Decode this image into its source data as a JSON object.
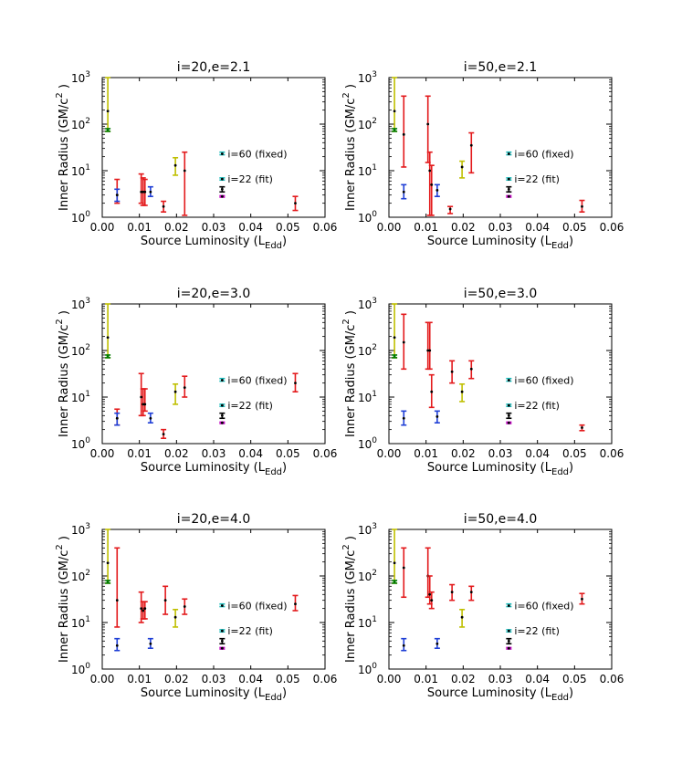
{
  "chart_data": {
    "type": "scatter",
    "colors": {
      "yellow": "#bfbf00",
      "red": "#e31a1c",
      "blue": "#1f3fd6",
      "cyan": "#17b9b9",
      "green": "#007a00",
      "black": "#000000",
      "magenta": "#c000c0"
    },
    "legend": {
      "fixed_label": "i=60 (fixed)",
      "fit_label": "i=22 (fit)"
    },
    "panels": [
      {
        "title": "i=20,e=2.1",
        "xlabel": "Source Luminosity (L",
        "xlabel_sub": "Edd",
        "xlabel_close": ")",
        "ylabel": "Inner Radius (GM/c",
        "ylabel_sup": "2",
        "ylabel_close": " )",
        "xlim": [
          0,
          0.06
        ],
        "ylim": [
          1,
          1000
        ],
        "xticks": [
          "0.00",
          "0.01",
          "0.02",
          "0.03",
          "0.04",
          "0.05",
          "0.06"
        ],
        "yticks": [
          "10",
          "10",
          "10",
          "10"
        ],
        "ytick_exp": [
          "0",
          "1",
          "2",
          "3"
        ],
        "points": [
          {
            "x": 0.0015,
            "y": 190,
            "lo": 70,
            "hi": 1000,
            "color": "yellow"
          },
          {
            "x": 0.0015,
            "y": 75,
            "lo": 70,
            "hi": 80,
            "color": "green"
          },
          {
            "x": 0.004,
            "y": 3.0,
            "lo": 2.0,
            "hi": 6.5,
            "color": "red"
          },
          {
            "x": 0.004,
            "y": 3.0,
            "lo": 2.2,
            "hi": 4.0,
            "color": "blue"
          },
          {
            "x": 0.0105,
            "y": 3.5,
            "lo": 2.0,
            "hi": 8.5,
            "color": "red"
          },
          {
            "x": 0.011,
            "y": 3.5,
            "lo": 1.8,
            "hi": 7.0,
            "color": "red"
          },
          {
            "x": 0.0115,
            "y": 3.5,
            "lo": 1.8,
            "hi": 6.5,
            "color": "red"
          },
          {
            "x": 0.013,
            "y": 3.5,
            "lo": 2.8,
            "hi": 4.5,
            "color": "blue"
          },
          {
            "x": 0.0165,
            "y": 1.7,
            "lo": 1.3,
            "hi": 2.2,
            "color": "red"
          },
          {
            "x": 0.0197,
            "y": 13,
            "lo": 8,
            "hi": 19,
            "color": "yellow"
          },
          {
            "x": 0.0222,
            "y": 10,
            "lo": 1.1,
            "hi": 25,
            "color": "red"
          },
          {
            "x": 0.0323,
            "y": 23,
            "lo": 22,
            "hi": 25,
            "color": "cyan"
          },
          {
            "x": 0.0323,
            "y": 6.6,
            "lo": 6.3,
            "hi": 7,
            "color": "cyan"
          },
          {
            "x": 0.0323,
            "y": 4.0,
            "lo": 3.5,
            "hi": 4.5,
            "color": "black"
          },
          {
            "x": 0.0323,
            "y": 2.8,
            "lo": 2.7,
            "hi": 2.9,
            "color": "magenta"
          },
          {
            "x": 0.052,
            "y": 2.0,
            "lo": 1.4,
            "hi": 2.8,
            "color": "red"
          }
        ]
      },
      {
        "title": "i=50,e=2.1",
        "xlabel": "Source Luminosity (L",
        "xlabel_sub": "Edd",
        "xlabel_close": ")",
        "ylabel": "Inner Radius (GM/c",
        "ylabel_sup": "2",
        "ylabel_close": " )",
        "xlim": [
          0,
          0.06
        ],
        "ylim": [
          1,
          1000
        ],
        "xticks": [
          "0.00",
          "0.01",
          "0.02",
          "0.03",
          "0.04",
          "0.05",
          "0.06"
        ],
        "yticks": [
          "10",
          "10",
          "10",
          "10"
        ],
        "ytick_exp": [
          "0",
          "1",
          "2",
          "3"
        ],
        "points": [
          {
            "x": 0.0015,
            "y": 190,
            "lo": 70,
            "hi": 1000,
            "color": "yellow"
          },
          {
            "x": 0.0015,
            "y": 75,
            "lo": 70,
            "hi": 80,
            "color": "green"
          },
          {
            "x": 0.004,
            "y": 60,
            "lo": 12,
            "hi": 400,
            "color": "red"
          },
          {
            "x": 0.004,
            "y": 3.5,
            "lo": 2.5,
            "hi": 5,
            "color": "blue"
          },
          {
            "x": 0.0105,
            "y": 100,
            "lo": 15,
            "hi": 400,
            "color": "red"
          },
          {
            "x": 0.011,
            "y": 10,
            "lo": 1.1,
            "hi": 25,
            "color": "red"
          },
          {
            "x": 0.0115,
            "y": 5,
            "lo": 1.1,
            "hi": 13,
            "color": "red"
          },
          {
            "x": 0.013,
            "y": 3.8,
            "lo": 2.8,
            "hi": 5,
            "color": "blue"
          },
          {
            "x": 0.0165,
            "y": 1.5,
            "lo": 1.2,
            "hi": 1.7,
            "color": "red"
          },
          {
            "x": 0.0197,
            "y": 12,
            "lo": 7,
            "hi": 16,
            "color": "yellow"
          },
          {
            "x": 0.0222,
            "y": 35,
            "lo": 9,
            "hi": 65,
            "color": "red"
          },
          {
            "x": 0.0323,
            "y": 23,
            "lo": 22,
            "hi": 25,
            "color": "cyan"
          },
          {
            "x": 0.0323,
            "y": 6.6,
            "lo": 6.3,
            "hi": 7,
            "color": "cyan"
          },
          {
            "x": 0.0323,
            "y": 4.0,
            "lo": 3.5,
            "hi": 4.5,
            "color": "black"
          },
          {
            "x": 0.0323,
            "y": 2.8,
            "lo": 2.7,
            "hi": 2.9,
            "color": "magenta"
          },
          {
            "x": 0.052,
            "y": 1.7,
            "lo": 1.3,
            "hi": 2.3,
            "color": "red"
          }
        ]
      },
      {
        "title": "i=20,e=3.0",
        "xlabel": "Source Luminosity (L",
        "xlabel_sub": "Edd",
        "xlabel_close": ")",
        "ylabel": "Inner Radius (GM/c",
        "ylabel_sup": "2",
        "ylabel_close": " )",
        "xlim": [
          0,
          0.06
        ],
        "ylim": [
          1,
          1000
        ],
        "xticks": [
          "0.00",
          "0.01",
          "0.02",
          "0.03",
          "0.04",
          "0.05",
          "0.06"
        ],
        "yticks": [
          "10",
          "10",
          "10",
          "10"
        ],
        "ytick_exp": [
          "0",
          "1",
          "2",
          "3"
        ],
        "points": [
          {
            "x": 0.0015,
            "y": 190,
            "lo": 70,
            "hi": 1000,
            "color": "yellow"
          },
          {
            "x": 0.0015,
            "y": 75,
            "lo": 70,
            "hi": 80,
            "color": "green"
          },
          {
            "x": 0.004,
            "y": 3.5,
            "lo": 2.5,
            "hi": 5.5,
            "color": "red"
          },
          {
            "x": 0.004,
            "y": 3.5,
            "lo": 2.5,
            "hi": 4.5,
            "color": "blue"
          },
          {
            "x": 0.0105,
            "y": 10,
            "lo": 4,
            "hi": 32,
            "color": "red"
          },
          {
            "x": 0.011,
            "y": 7,
            "lo": 4,
            "hi": 15,
            "color": "red"
          },
          {
            "x": 0.0115,
            "y": 7,
            "lo": 5,
            "hi": 15,
            "color": "red"
          },
          {
            "x": 0.013,
            "y": 3.5,
            "lo": 2.8,
            "hi": 4.5,
            "color": "blue"
          },
          {
            "x": 0.0165,
            "y": 1.6,
            "lo": 1.3,
            "hi": 2.0,
            "color": "red"
          },
          {
            "x": 0.0197,
            "y": 13,
            "lo": 7,
            "hi": 19,
            "color": "yellow"
          },
          {
            "x": 0.0222,
            "y": 16,
            "lo": 10,
            "hi": 28,
            "color": "red"
          },
          {
            "x": 0.0323,
            "y": 23,
            "lo": 22,
            "hi": 25,
            "color": "cyan"
          },
          {
            "x": 0.0323,
            "y": 6.6,
            "lo": 6.3,
            "hi": 7,
            "color": "cyan"
          },
          {
            "x": 0.0323,
            "y": 4.0,
            "lo": 3.5,
            "hi": 4.5,
            "color": "black"
          },
          {
            "x": 0.0323,
            "y": 2.8,
            "lo": 2.7,
            "hi": 2.9,
            "color": "magenta"
          },
          {
            "x": 0.052,
            "y": 20,
            "lo": 13,
            "hi": 32,
            "color": "red"
          }
        ]
      },
      {
        "title": "i=50,e=3.0",
        "xlabel": "Source Luminosity (L",
        "xlabel_sub": "Edd",
        "xlabel_close": ")",
        "ylabel": "Inner Radius (GM/c",
        "ylabel_sup": "2",
        "ylabel_close": " )",
        "xlim": [
          0,
          0.06
        ],
        "ylim": [
          1,
          1000
        ],
        "xticks": [
          "0.00",
          "0.01",
          "0.02",
          "0.03",
          "0.04",
          "0.05",
          "0.06"
        ],
        "yticks": [
          "10",
          "10",
          "10",
          "10"
        ],
        "ytick_exp": [
          "0",
          "1",
          "2",
          "3"
        ],
        "points": [
          {
            "x": 0.0015,
            "y": 190,
            "lo": 70,
            "hi": 1000,
            "color": "yellow"
          },
          {
            "x": 0.0015,
            "y": 75,
            "lo": 70,
            "hi": 80,
            "color": "green"
          },
          {
            "x": 0.004,
            "y": 150,
            "lo": 40,
            "hi": 600,
            "color": "red"
          },
          {
            "x": 0.004,
            "y": 3.5,
            "lo": 2.5,
            "hi": 5,
            "color": "blue"
          },
          {
            "x": 0.0105,
            "y": 100,
            "lo": 40,
            "hi": 400,
            "color": "red"
          },
          {
            "x": 0.011,
            "y": 100,
            "lo": 40,
            "hi": 400,
            "color": "red"
          },
          {
            "x": 0.0115,
            "y": 13,
            "lo": 6,
            "hi": 30,
            "color": "red"
          },
          {
            "x": 0.013,
            "y": 3.8,
            "lo": 2.8,
            "hi": 5,
            "color": "blue"
          },
          {
            "x": 0.017,
            "y": 35,
            "lo": 20,
            "hi": 60,
            "color": "red"
          },
          {
            "x": 0.0197,
            "y": 13,
            "lo": 8,
            "hi": 19,
            "color": "yellow"
          },
          {
            "x": 0.0222,
            "y": 40,
            "lo": 25,
            "hi": 60,
            "color": "red"
          },
          {
            "x": 0.0323,
            "y": 23,
            "lo": 22,
            "hi": 25,
            "color": "cyan"
          },
          {
            "x": 0.0323,
            "y": 6.6,
            "lo": 6.3,
            "hi": 7,
            "color": "cyan"
          },
          {
            "x": 0.0323,
            "y": 4.0,
            "lo": 3.5,
            "hi": 4.5,
            "color": "black"
          },
          {
            "x": 0.0323,
            "y": 2.8,
            "lo": 2.7,
            "hi": 2.9,
            "color": "magenta"
          },
          {
            "x": 0.052,
            "y": 2.2,
            "lo": 1.9,
            "hi": 2.5,
            "color": "red"
          }
        ]
      },
      {
        "title": "i=20,e=4.0",
        "xlabel": "Source Luminosity (L",
        "xlabel_sub": "Edd",
        "xlabel_close": ")",
        "ylabel": "Inner Radius (GM/c",
        "ylabel_sup": "2",
        "ylabel_close": " )",
        "xlim": [
          0,
          0.06
        ],
        "ylim": [
          1,
          1000
        ],
        "xticks": [
          "0.00",
          "0.01",
          "0.02",
          "0.03",
          "0.04",
          "0.05",
          "0.06"
        ],
        "yticks": [
          "10",
          "10",
          "10",
          "10"
        ],
        "ytick_exp": [
          "0",
          "1",
          "2",
          "3"
        ],
        "points": [
          {
            "x": 0.0015,
            "y": 190,
            "lo": 70,
            "hi": 1000,
            "color": "yellow"
          },
          {
            "x": 0.0015,
            "y": 75,
            "lo": 70,
            "hi": 80,
            "color": "green"
          },
          {
            "x": 0.004,
            "y": 30,
            "lo": 8,
            "hi": 400,
            "color": "red"
          },
          {
            "x": 0.004,
            "y": 3.2,
            "lo": 2.5,
            "hi": 4.5,
            "color": "blue"
          },
          {
            "x": 0.0105,
            "y": 20,
            "lo": 10,
            "hi": 45,
            "color": "red"
          },
          {
            "x": 0.011,
            "y": 18,
            "lo": 12,
            "hi": 28,
            "color": "red"
          },
          {
            "x": 0.0115,
            "y": 20,
            "lo": 12,
            "hi": 28,
            "color": "red"
          },
          {
            "x": 0.013,
            "y": 3.5,
            "lo": 2.8,
            "hi": 4.5,
            "color": "blue"
          },
          {
            "x": 0.017,
            "y": 30,
            "lo": 15,
            "hi": 60,
            "color": "red"
          },
          {
            "x": 0.0197,
            "y": 13,
            "lo": 8,
            "hi": 19,
            "color": "yellow"
          },
          {
            "x": 0.0222,
            "y": 22,
            "lo": 15,
            "hi": 32,
            "color": "red"
          },
          {
            "x": 0.0323,
            "y": 23,
            "lo": 22,
            "hi": 25,
            "color": "cyan"
          },
          {
            "x": 0.0323,
            "y": 6.6,
            "lo": 6.3,
            "hi": 7,
            "color": "cyan"
          },
          {
            "x": 0.0323,
            "y": 4.0,
            "lo": 3.5,
            "hi": 4.5,
            "color": "black"
          },
          {
            "x": 0.0323,
            "y": 2.8,
            "lo": 2.7,
            "hi": 2.9,
            "color": "magenta"
          },
          {
            "x": 0.052,
            "y": 25,
            "lo": 18,
            "hi": 38,
            "color": "red"
          }
        ]
      },
      {
        "title": "i=50,e=4.0",
        "xlabel": "Source Luminosity (L",
        "xlabel_sub": "Edd",
        "xlabel_close": ")",
        "ylabel": "Inner Radius (GM/c",
        "ylabel_sup": "2",
        "ylabel_close": " )",
        "xlim": [
          0,
          0.06
        ],
        "ylim": [
          1,
          1000
        ],
        "xticks": [
          "0.00",
          "0.01",
          "0.02",
          "0.03",
          "0.04",
          "0.05",
          "0.06"
        ],
        "yticks": [
          "10",
          "10",
          "10",
          "10"
        ],
        "ytick_exp": [
          "0",
          "1",
          "2",
          "3"
        ],
        "points": [
          {
            "x": 0.0015,
            "y": 190,
            "lo": 70,
            "hi": 1000,
            "color": "yellow"
          },
          {
            "x": 0.0015,
            "y": 75,
            "lo": 70,
            "hi": 80,
            "color": "green"
          },
          {
            "x": 0.004,
            "y": 150,
            "lo": 35,
            "hi": 400,
            "color": "red"
          },
          {
            "x": 0.004,
            "y": 3.2,
            "lo": 2.5,
            "hi": 4.5,
            "color": "blue"
          },
          {
            "x": 0.0105,
            "y": 100,
            "lo": 35,
            "hi": 400,
            "color": "red"
          },
          {
            "x": 0.011,
            "y": 40,
            "lo": 25,
            "hi": 100,
            "color": "red"
          },
          {
            "x": 0.0115,
            "y": 30,
            "lo": 20,
            "hi": 45,
            "color": "red"
          },
          {
            "x": 0.013,
            "y": 3.5,
            "lo": 2.8,
            "hi": 4.5,
            "color": "blue"
          },
          {
            "x": 0.017,
            "y": 45,
            "lo": 30,
            "hi": 65,
            "color": "red"
          },
          {
            "x": 0.0197,
            "y": 13,
            "lo": 8,
            "hi": 19,
            "color": "yellow"
          },
          {
            "x": 0.0222,
            "y": 45,
            "lo": 30,
            "hi": 60,
            "color": "red"
          },
          {
            "x": 0.0323,
            "y": 23,
            "lo": 22,
            "hi": 25,
            "color": "cyan"
          },
          {
            "x": 0.0323,
            "y": 6.6,
            "lo": 6.3,
            "hi": 7,
            "color": "cyan"
          },
          {
            "x": 0.0323,
            "y": 4.0,
            "lo": 3.5,
            "hi": 4.5,
            "color": "black"
          },
          {
            "x": 0.0323,
            "y": 2.8,
            "lo": 2.7,
            "hi": 2.9,
            "color": "magenta"
          },
          {
            "x": 0.052,
            "y": 32,
            "lo": 25,
            "hi": 42,
            "color": "red"
          }
        ]
      }
    ]
  }
}
